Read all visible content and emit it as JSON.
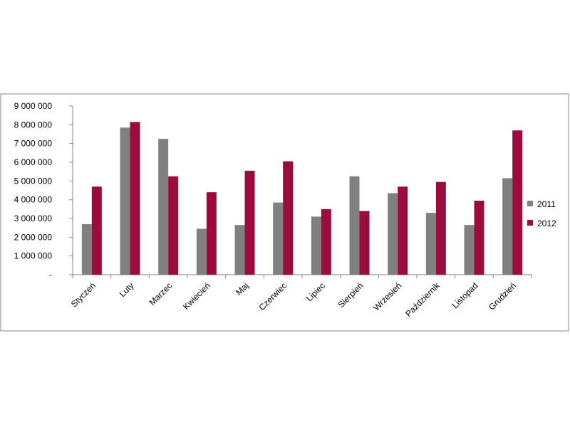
{
  "chart_data": {
    "type": "bar",
    "categories": [
      "Styczeń",
      "Luty",
      "Marzec",
      "Kwiecień",
      "Maj",
      "Czerwiec",
      "Lipiec",
      "Sierpień",
      "Wrzesień",
      "Październik",
      "Listopad",
      "Grudzień"
    ],
    "series": [
      {
        "name": "2011",
        "color": "#808080",
        "values": [
          2700000,
          7850000,
          7250000,
          2450000,
          2650000,
          3850000,
          3100000,
          5250000,
          4350000,
          3300000,
          2650000,
          5150000
        ]
      },
      {
        "name": "2012",
        "color": "#9B0B3B",
        "values": [
          4700000,
          8150000,
          5250000,
          4400000,
          5550000,
          6050000,
          3500000,
          3400000,
          4700000,
          4950000,
          3950000,
          7700000
        ]
      }
    ],
    "y_ticks": [
      {
        "value": 0,
        "label": "-"
      },
      {
        "value": 1000000,
        "label": "1 000 000"
      },
      {
        "value": 2000000,
        "label": "2 000 000"
      },
      {
        "value": 3000000,
        "label": "3 000 000"
      },
      {
        "value": 4000000,
        "label": "4 000 000"
      },
      {
        "value": 5000000,
        "label": "5 000 000"
      },
      {
        "value": 6000000,
        "label": "6 000 000"
      },
      {
        "value": 7000000,
        "label": "7 000 000"
      },
      {
        "value": 8000000,
        "label": "8 000 000"
      },
      {
        "value": 9000000,
        "label": "9 000 000"
      }
    ],
    "ylim": [
      0,
      9000000
    ],
    "grid": false,
    "legend_position": "right"
  }
}
